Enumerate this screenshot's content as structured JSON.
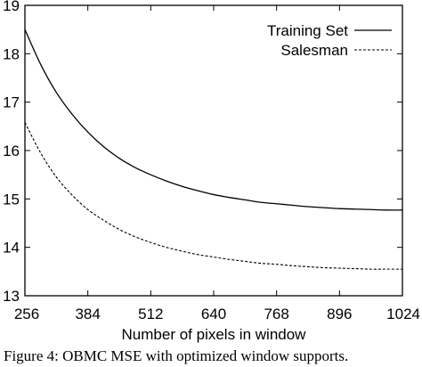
{
  "chart_data": {
    "type": "line",
    "xlabel": "Number of pixels in window",
    "ylabel": "",
    "caption": "Figure 4: OBMC MSE with optimized window supports.",
    "xlim": [
      256,
      1024
    ],
    "ylim": [
      13,
      19
    ],
    "xticks": [
      "256",
      "384",
      "512",
      "640",
      "768",
      "896",
      "1024"
    ],
    "xtick_values": [
      256,
      384,
      512,
      640,
      768,
      896,
      1024
    ],
    "yticks": [
      "13",
      "14",
      "15",
      "16",
      "17",
      "18",
      "19"
    ],
    "ytick_values": [
      13,
      14,
      15,
      16,
      17,
      18,
      19
    ],
    "legend_position": "top-right",
    "grid": false,
    "x": [
      256,
      288,
      320,
      352,
      384,
      416,
      448,
      480,
      512,
      544,
      576,
      608,
      640,
      672,
      704,
      736,
      768,
      800,
      832,
      864,
      896,
      928,
      960,
      992,
      1024
    ],
    "series": [
      {
        "name": "Training Set",
        "style": "solid",
        "values": [
          18.5,
          17.78,
          17.2,
          16.75,
          16.38,
          16.08,
          15.84,
          15.65,
          15.5,
          15.37,
          15.26,
          15.17,
          15.09,
          15.03,
          14.98,
          14.93,
          14.9,
          14.87,
          14.84,
          14.82,
          14.8,
          14.79,
          14.78,
          14.77,
          14.77
        ]
      },
      {
        "name": "Salesman",
        "style": "dashed",
        "values": [
          16.58,
          15.95,
          15.45,
          15.08,
          14.78,
          14.56,
          14.37,
          14.22,
          14.1,
          14.0,
          13.92,
          13.85,
          13.8,
          13.75,
          13.71,
          13.67,
          13.65,
          13.62,
          13.6,
          13.58,
          13.57,
          13.56,
          13.55,
          13.55,
          13.55
        ]
      }
    ]
  }
}
